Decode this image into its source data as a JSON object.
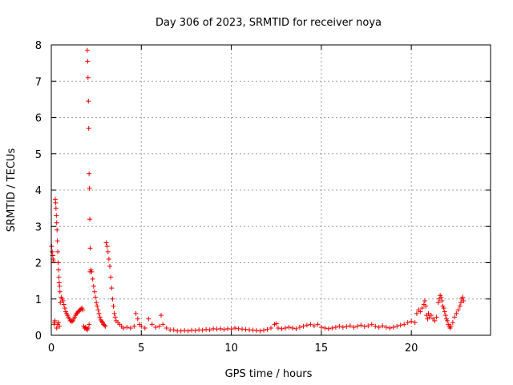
{
  "chart_data": {
    "type": "scatter",
    "title": "Day 306 of 2023, SRMTID for receiver noya",
    "xlabel": "GPS time / hours",
    "ylabel": "SRMTID / TECUs",
    "xlim": [
      0,
      24.4
    ],
    "ylim": [
      0,
      8
    ],
    "xticks": [
      0,
      5,
      10,
      15,
      20
    ],
    "yticks": [
      0,
      1,
      2,
      3,
      4,
      5,
      6,
      7,
      8
    ],
    "grid": true,
    "marker": "plus",
    "color": "#ee0000",
    "series": [
      {
        "name": "SRMTID",
        "points": [
          [
            0.02,
            2.45
          ],
          [
            0.05,
            2.3
          ],
          [
            0.08,
            2.2
          ],
          [
            0.1,
            2.1
          ],
          [
            0.12,
            2.05
          ],
          [
            0.15,
            0.3
          ],
          [
            0.18,
            0.35
          ],
          [
            0.2,
            0.4
          ],
          [
            0.22,
            3.75
          ],
          [
            0.24,
            3.65
          ],
          [
            0.26,
            3.5
          ],
          [
            0.28,
            3.3
          ],
          [
            0.3,
            3.1
          ],
          [
            0.32,
            2.9
          ],
          [
            0.34,
            2.6
          ],
          [
            0.36,
            2.3
          ],
          [
            0.38,
            2.0
          ],
          [
            0.4,
            1.8
          ],
          [
            0.42,
            1.6
          ],
          [
            0.44,
            1.45
          ],
          [
            0.46,
            1.35
          ],
          [
            0.48,
            1.2
          ],
          [
            0.3,
            0.2
          ],
          [
            0.35,
            0.3
          ],
          [
            0.4,
            0.35
          ],
          [
            0.45,
            0.25
          ],
          [
            0.5,
            0.9
          ],
          [
            0.55,
            1.05
          ],
          [
            0.6,
            1.0
          ],
          [
            0.65,
            0.95
          ],
          [
            0.7,
            0.85
          ],
          [
            0.75,
            0.75
          ],
          [
            0.8,
            0.65
          ],
          [
            0.85,
            0.6
          ],
          [
            0.9,
            0.55
          ],
          [
            0.95,
            0.5
          ],
          [
            1.0,
            0.45
          ],
          [
            1.05,
            0.4
          ],
          [
            1.1,
            0.4
          ],
          [
            1.15,
            0.38
          ],
          [
            1.2,
            0.4
          ],
          [
            1.25,
            0.45
          ],
          [
            1.3,
            0.5
          ],
          [
            1.35,
            0.55
          ],
          [
            1.4,
            0.6
          ],
          [
            1.45,
            0.62
          ],
          [
            1.5,
            0.65
          ],
          [
            1.55,
            0.68
          ],
          [
            1.6,
            0.7
          ],
          [
            1.65,
            0.72
          ],
          [
            1.7,
            0.75
          ],
          [
            1.75,
            0.7
          ],
          [
            1.8,
            0.25
          ],
          [
            1.85,
            0.2
          ],
          [
            1.9,
            0.22
          ],
          [
            1.95,
            0.18
          ],
          [
            2.0,
            7.85
          ],
          [
            2.02,
            7.55
          ],
          [
            2.04,
            7.1
          ],
          [
            2.06,
            6.45
          ],
          [
            2.08,
            5.7
          ],
          [
            2.1,
            4.45
          ],
          [
            2.12,
            4.05
          ],
          [
            2.14,
            3.2
          ],
          [
            2.16,
            2.4
          ],
          [
            2.0,
            0.15
          ],
          [
            2.05,
            0.2
          ],
          [
            2.1,
            0.3
          ],
          [
            2.15,
            1.75
          ],
          [
            2.2,
            1.8
          ],
          [
            2.25,
            1.75
          ],
          [
            2.3,
            1.55
          ],
          [
            2.35,
            1.35
          ],
          [
            2.4,
            1.2
          ],
          [
            2.45,
            1.05
          ],
          [
            2.5,
            0.9
          ],
          [
            2.55,
            0.8
          ],
          [
            2.6,
            0.7
          ],
          [
            2.65,
            0.6
          ],
          [
            2.7,
            0.5
          ],
          [
            2.75,
            0.42
          ],
          [
            2.8,
            0.38
          ],
          [
            2.85,
            0.35
          ],
          [
            2.9,
            0.3
          ],
          [
            2.95,
            0.28
          ],
          [
            3.0,
            0.25
          ],
          [
            3.05,
            2.55
          ],
          [
            3.1,
            2.45
          ],
          [
            3.15,
            2.3
          ],
          [
            3.2,
            2.1
          ],
          [
            3.25,
            1.9
          ],
          [
            3.3,
            1.6
          ],
          [
            3.35,
            1.3
          ],
          [
            3.4,
            1.0
          ],
          [
            3.45,
            0.8
          ],
          [
            3.5,
            0.6
          ],
          [
            3.55,
            0.5
          ],
          [
            3.6,
            0.4
          ],
          [
            3.7,
            0.35
          ],
          [
            3.8,
            0.3
          ],
          [
            3.9,
            0.25
          ],
          [
            4.0,
            0.2
          ],
          [
            4.2,
            0.22
          ],
          [
            4.4,
            0.2
          ],
          [
            4.6,
            0.25
          ],
          [
            4.7,
            0.6
          ],
          [
            4.8,
            0.45
          ],
          [
            4.9,
            0.3
          ],
          [
            5.0,
            0.25
          ],
          [
            5.2,
            0.2
          ],
          [
            5.4,
            0.45
          ],
          [
            5.6,
            0.3
          ],
          [
            5.8,
            0.22
          ],
          [
            6.0,
            0.25
          ],
          [
            6.1,
            0.55
          ],
          [
            6.2,
            0.3
          ],
          [
            6.4,
            0.2
          ],
          [
            6.6,
            0.15
          ],
          [
            6.8,
            0.15
          ],
          [
            7.0,
            0.12
          ],
          [
            7.2,
            0.12
          ],
          [
            7.4,
            0.13
          ],
          [
            7.6,
            0.12
          ],
          [
            7.8,
            0.14
          ],
          [
            8.0,
            0.13
          ],
          [
            8.2,
            0.15
          ],
          [
            8.4,
            0.14
          ],
          [
            8.6,
            0.16
          ],
          [
            8.8,
            0.15
          ],
          [
            9.0,
            0.18
          ],
          [
            9.2,
            0.17
          ],
          [
            9.4,
            0.18
          ],
          [
            9.6,
            0.16
          ],
          [
            9.8,
            0.18
          ],
          [
            10.0,
            0.17
          ],
          [
            10.2,
            0.2
          ],
          [
            10.4,
            0.18
          ],
          [
            10.6,
            0.17
          ],
          [
            10.8,
            0.16
          ],
          [
            11.0,
            0.15
          ],
          [
            11.2,
            0.14
          ],
          [
            11.4,
            0.13
          ],
          [
            11.6,
            0.12
          ],
          [
            11.8,
            0.14
          ],
          [
            12.0,
            0.16
          ],
          [
            12.2,
            0.2
          ],
          [
            12.4,
            0.3
          ],
          [
            12.5,
            0.32
          ],
          [
            12.6,
            0.2
          ],
          [
            12.8,
            0.18
          ],
          [
            13.0,
            0.2
          ],
          [
            13.2,
            0.22
          ],
          [
            13.4,
            0.2
          ],
          [
            13.6,
            0.18
          ],
          [
            13.8,
            0.22
          ],
          [
            14.0,
            0.25
          ],
          [
            14.2,
            0.28
          ],
          [
            14.4,
            0.3
          ],
          [
            14.6,
            0.26
          ],
          [
            14.8,
            0.3
          ],
          [
            15.0,
            0.22
          ],
          [
            15.2,
            0.2
          ],
          [
            15.4,
            0.18
          ],
          [
            15.6,
            0.2
          ],
          [
            15.8,
            0.22
          ],
          [
            16.0,
            0.25
          ],
          [
            16.2,
            0.22
          ],
          [
            16.4,
            0.24
          ],
          [
            16.6,
            0.26
          ],
          [
            16.8,
            0.22
          ],
          [
            17.0,
            0.25
          ],
          [
            17.2,
            0.28
          ],
          [
            17.4,
            0.24
          ],
          [
            17.6,
            0.26
          ],
          [
            17.8,
            0.3
          ],
          [
            18.0,
            0.25
          ],
          [
            18.2,
            0.22
          ],
          [
            18.4,
            0.26
          ],
          [
            18.6,
            0.22
          ],
          [
            18.8,
            0.2
          ],
          [
            19.0,
            0.22
          ],
          [
            19.2,
            0.25
          ],
          [
            19.4,
            0.28
          ],
          [
            19.6,
            0.3
          ],
          [
            19.8,
            0.35
          ],
          [
            20.0,
            0.38
          ],
          [
            20.2,
            0.35
          ],
          [
            20.3,
            0.6
          ],
          [
            20.4,
            0.7
          ],
          [
            20.5,
            0.65
          ],
          [
            20.6,
            0.75
          ],
          [
            20.7,
            0.85
          ],
          [
            20.75,
            0.95
          ],
          [
            20.8,
            0.8
          ],
          [
            20.85,
            0.55
          ],
          [
            20.9,
            0.45
          ],
          [
            20.95,
            0.6
          ],
          [
            21.0,
            0.5
          ],
          [
            21.1,
            0.55
          ],
          [
            21.2,
            0.45
          ],
          [
            21.3,
            0.4
          ],
          [
            21.4,
            0.5
          ],
          [
            21.5,
            0.9
          ],
          [
            21.55,
            1.0
          ],
          [
            21.6,
            1.1
          ],
          [
            21.65,
            1.05
          ],
          [
            21.7,
            0.95
          ],
          [
            21.75,
            0.8
          ],
          [
            21.8,
            0.75
          ],
          [
            21.85,
            0.65
          ],
          [
            21.9,
            0.55
          ],
          [
            21.95,
            0.45
          ],
          [
            22.0,
            0.4
          ],
          [
            22.05,
            0.3
          ],
          [
            22.1,
            0.25
          ],
          [
            22.15,
            0.2
          ],
          [
            22.2,
            0.25
          ],
          [
            22.3,
            0.35
          ],
          [
            22.4,
            0.5
          ],
          [
            22.5,
            0.6
          ],
          [
            22.6,
            0.7
          ],
          [
            22.7,
            0.8
          ],
          [
            22.75,
            0.9
          ],
          [
            22.8,
            1.0
          ],
          [
            22.85,
            1.05
          ],
          [
            22.9,
            0.95
          ]
        ]
      }
    ]
  }
}
